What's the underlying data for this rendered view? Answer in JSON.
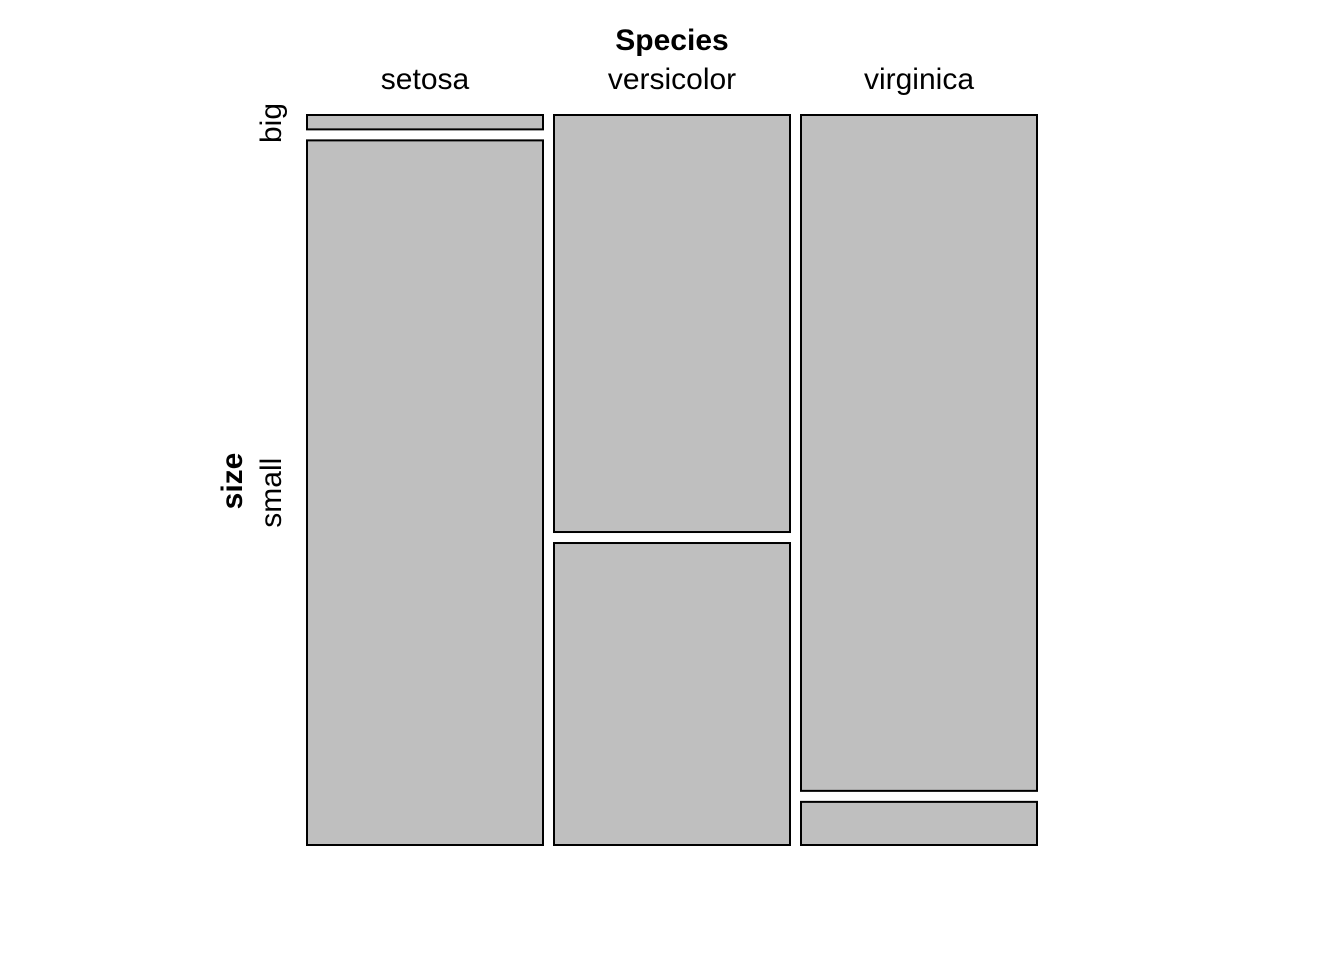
{
  "chart_data": {
    "type": "mosaic",
    "x_variable": "Species",
    "y_variable": "size",
    "categories": [
      "setosa",
      "versicolor",
      "virginica"
    ],
    "levels": [
      "big",
      "small"
    ],
    "counts": {
      "setosa": {
        "big": 1,
        "small": 49
      },
      "versicolor": {
        "big": 29,
        "small": 21
      },
      "virginica": {
        "big": 47,
        "small": 3
      }
    },
    "fill_color": "#bfbfbf",
    "stroke_color": "#000000",
    "legend": "none",
    "grid": false
  }
}
